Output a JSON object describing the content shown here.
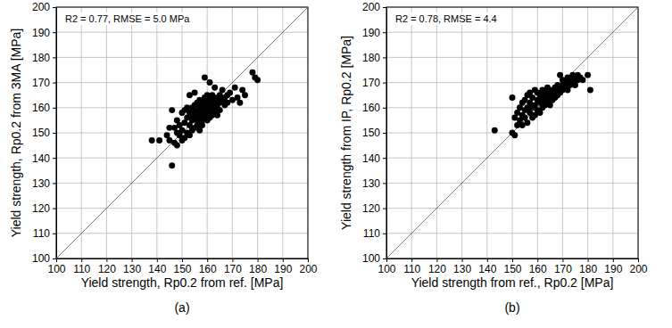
{
  "chart_data": [
    {
      "type": "scatter",
      "title": "(a)",
      "x_label": "Yield strength, Rp0.2 from ref. [MPa]",
      "y_label": "Yield strength, Rp0.2 from 3MA [MPa]",
      "annotation": "R2 = 0.77, RMSE = 5.0 MPa",
      "color": "#000000",
      "marker": "circle",
      "grid": true,
      "xlim": [
        100,
        200
      ],
      "ylim": [
        100,
        200
      ],
      "xticks": [
        100,
        110,
        120,
        130,
        140,
        150,
        160,
        170,
        180,
        190,
        200
      ],
      "yticks": [
        100,
        110,
        120,
        130,
        140,
        150,
        160,
        170,
        180,
        190,
        200
      ],
      "x": [
        138,
        141,
        144,
        145,
        145,
        146,
        146,
        147,
        147,
        148,
        148,
        148,
        149,
        149,
        150,
        150,
        150,
        151,
        151,
        151,
        152,
        152,
        152,
        153,
        153,
        153,
        153,
        154,
        154,
        154,
        154,
        155,
        155,
        155,
        155,
        155,
        156,
        156,
        156,
        156,
        156,
        157,
        157,
        157,
        157,
        157,
        157,
        158,
        158,
        158,
        158,
        158,
        158,
        159,
        159,
        159,
        159,
        159,
        159,
        160,
        160,
        160,
        160,
        160,
        160,
        161,
        161,
        161,
        161,
        161,
        162,
        162,
        162,
        162,
        162,
        163,
        163,
        163,
        163,
        164,
        164,
        164,
        165,
        165,
        165,
        166,
        166,
        167,
        167,
        168,
        168,
        169,
        170,
        171,
        172,
        173,
        174,
        175,
        178,
        179,
        180
      ],
      "values": [
        147,
        147,
        149,
        147,
        152,
        137,
        159,
        146,
        152,
        150,
        145,
        155,
        149,
        153,
        151,
        158,
        147,
        154,
        148,
        159,
        156,
        150,
        160,
        153,
        158,
        149,
        165,
        155,
        160,
        151,
        157,
        156,
        152,
        161,
        158,
        166,
        155,
        159,
        153,
        162,
        157,
        158,
        154,
        161,
        156,
        163,
        151,
        157,
        160,
        155,
        162,
        159,
        153,
        158,
        161,
        156,
        164,
        160,
        172,
        157,
        159,
        162,
        155,
        165,
        160,
        158,
        161,
        163,
        156,
        170,
        159,
        162,
        157,
        165,
        160,
        161,
        158,
        164,
        168,
        160,
        163,
        157,
        162,
        165,
        159,
        163,
        167,
        161,
        164,
        165,
        162,
        166,
        163,
        168,
        164,
        162,
        167,
        165,
        174,
        172,
        171
      ]
    },
    {
      "type": "scatter",
      "title": "(b)",
      "x_label": "Yield strength from ref., Rp0.2 [MPa]",
      "y_label": "Yield strength from IP, Rp0.2 [MPa]",
      "annotation": "R2 = 0.78, RMSE = 4.4",
      "color": "#000000",
      "marker": "circle",
      "grid": true,
      "xlim": [
        100,
        200
      ],
      "ylim": [
        100,
        200
      ],
      "xticks": [
        100,
        110,
        120,
        130,
        140,
        150,
        160,
        170,
        180,
        190,
        200
      ],
      "yticks": [
        100,
        110,
        120,
        130,
        140,
        150,
        160,
        170,
        180,
        190,
        200
      ],
      "x": [
        143,
        150,
        150,
        151,
        151,
        152,
        152,
        153,
        153,
        154,
        154,
        154,
        155,
        155,
        155,
        156,
        156,
        156,
        157,
        157,
        157,
        158,
        158,
        158,
        159,
        159,
        159,
        160,
        160,
        160,
        161,
        161,
        161,
        162,
        162,
        162,
        163,
        163,
        163,
        164,
        164,
        164,
        165,
        165,
        165,
        166,
        166,
        166,
        167,
        167,
        167,
        168,
        168,
        168,
        169,
        169,
        169,
        170,
        170,
        170,
        171,
        171,
        172,
        172,
        172,
        173,
        173,
        174,
        174,
        175,
        175,
        176,
        176,
        177,
        178,
        180,
        181
      ],
      "values": [
        151,
        150,
        164,
        149,
        156,
        158,
        153,
        160,
        155,
        157,
        162,
        153,
        159,
        163,
        156,
        160,
        154,
        165,
        158,
        162,
        166,
        160,
        156,
        164,
        161,
        157,
        167,
        163,
        159,
        166,
        162,
        165,
        158,
        164,
        160,
        167,
        163,
        166,
        161,
        165,
        162,
        168,
        164,
        166,
        161,
        167,
        165,
        163,
        166,
        168,
        164,
        167,
        169,
        165,
        168,
        166,
        173,
        169,
        167,
        171,
        168,
        170,
        170,
        172,
        167,
        171,
        169,
        173,
        170,
        172,
        169,
        171,
        173,
        172,
        171,
        173,
        167
      ]
    }
  ]
}
